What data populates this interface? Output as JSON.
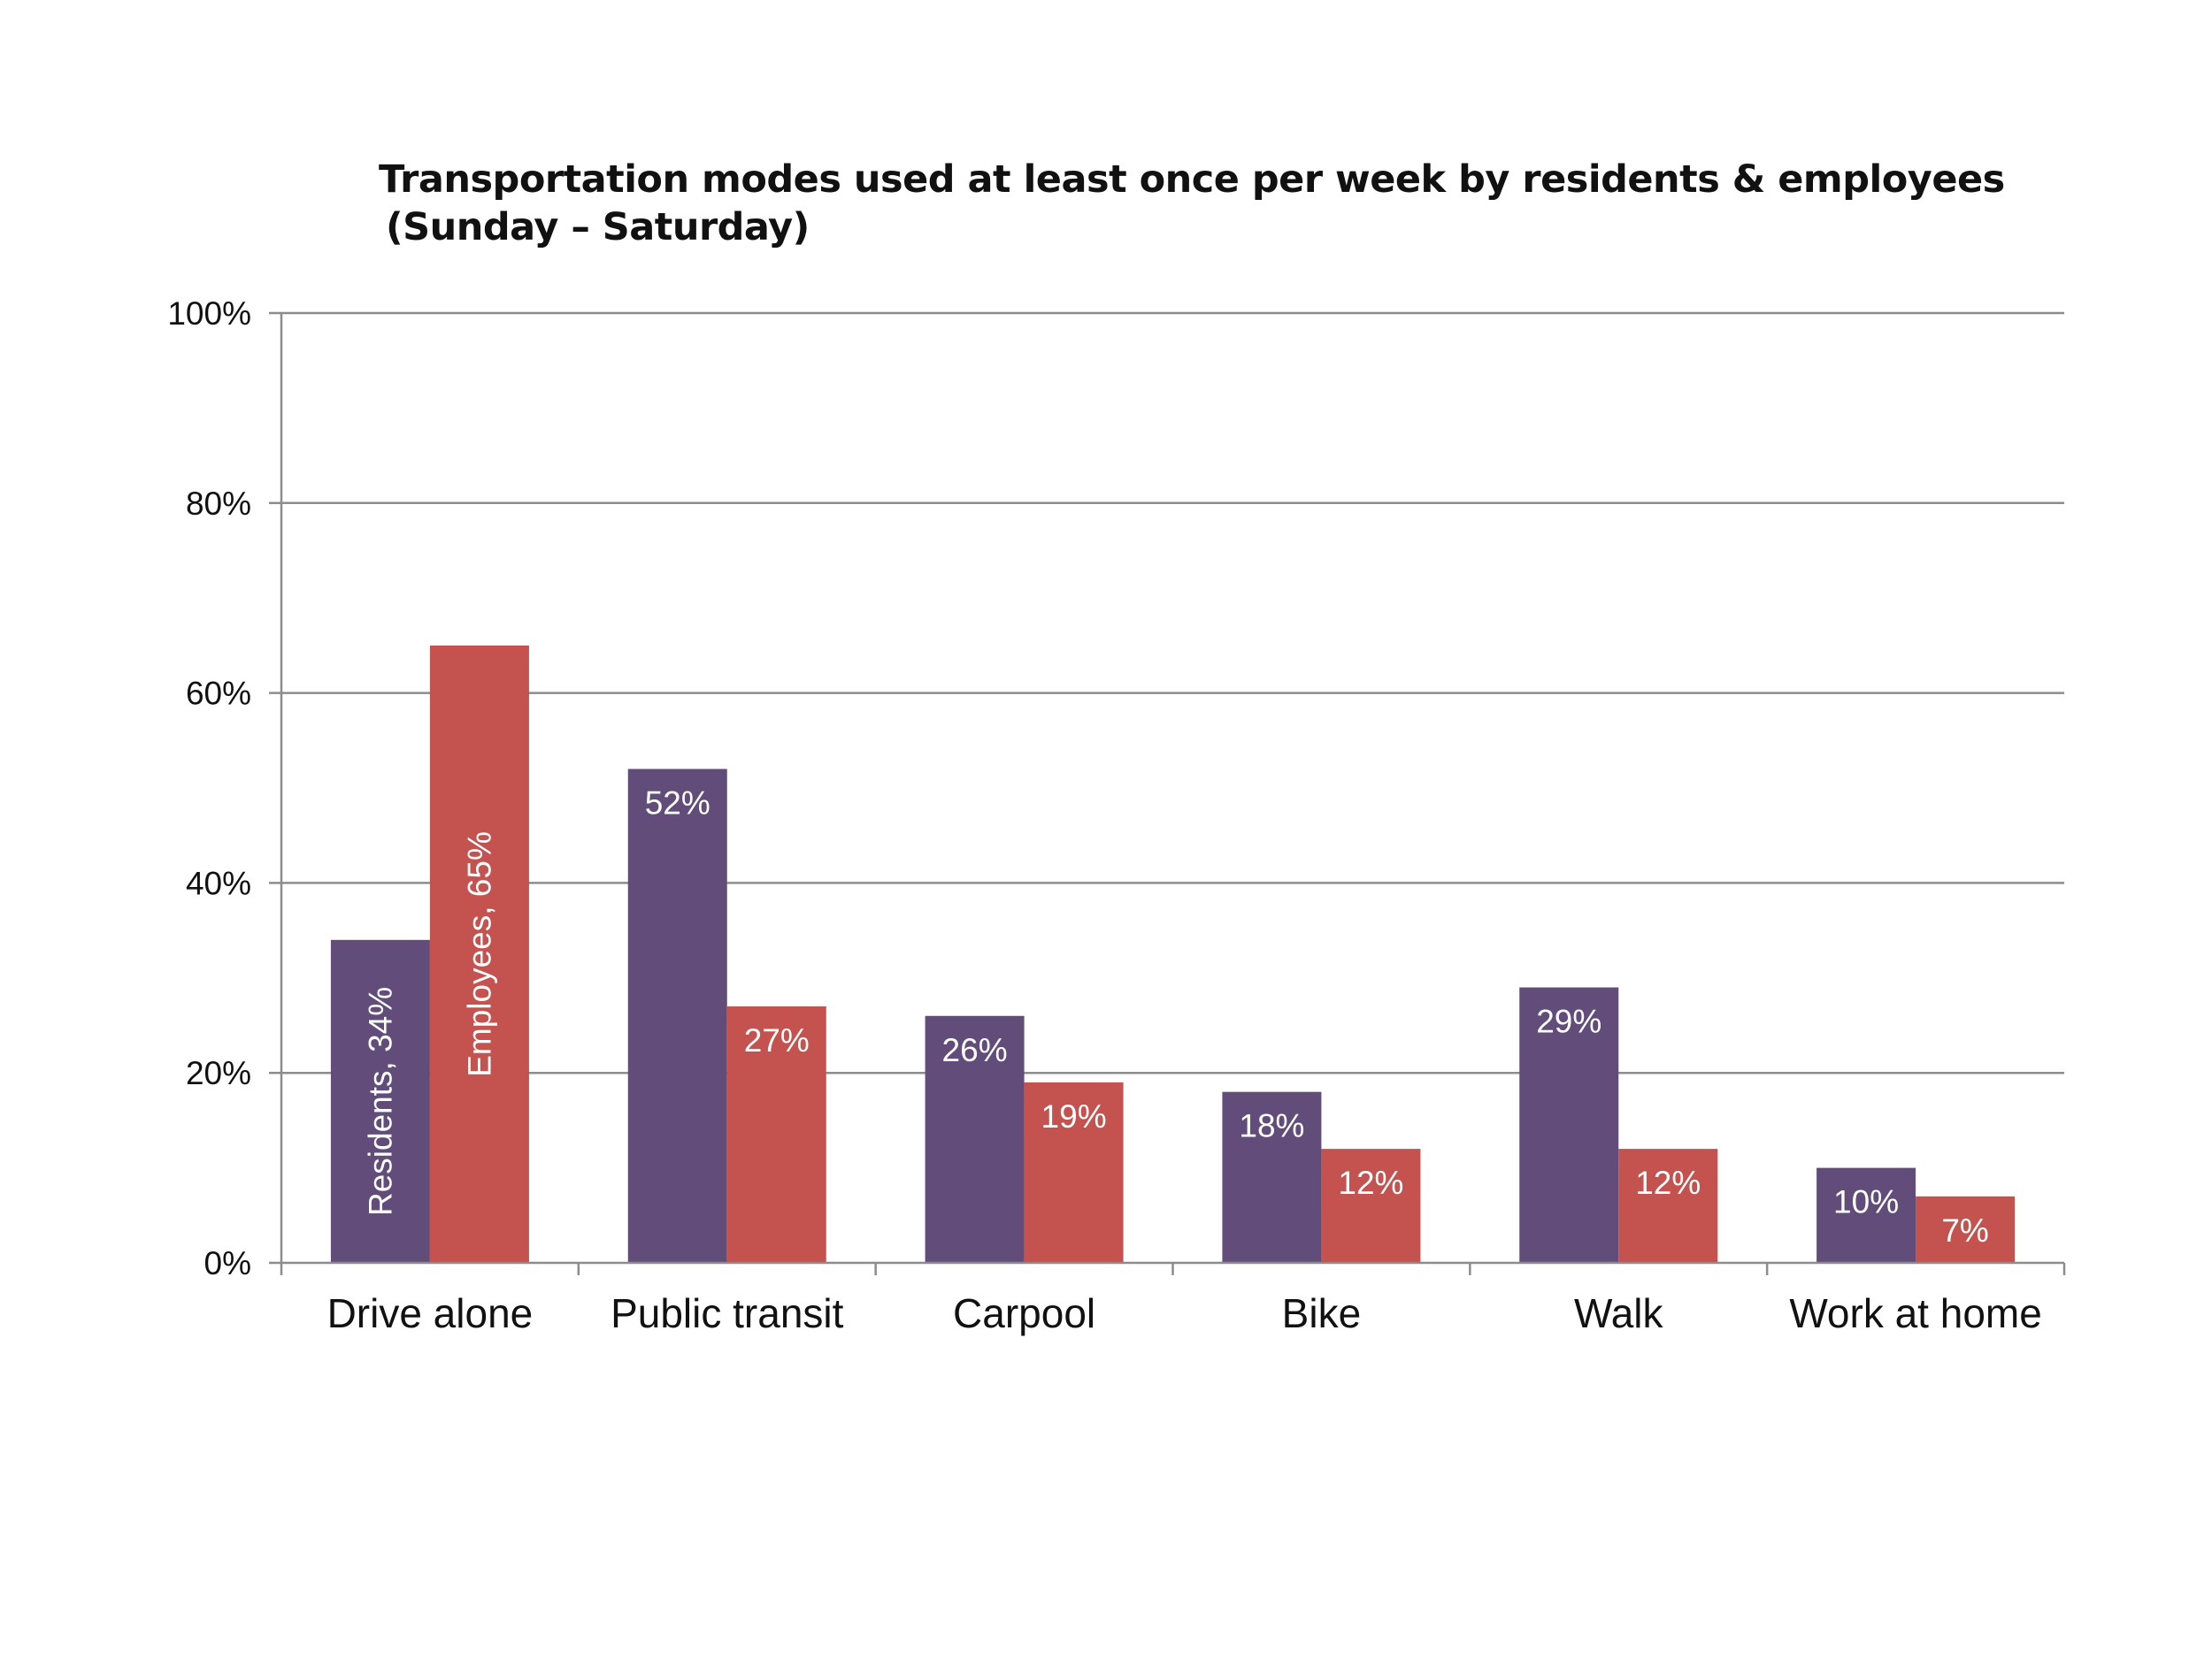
{
  "chart_data": {
    "type": "bar",
    "title_line1": "Transportation modes used at least once per week by residents & employees",
    "title_line2": "(Sunday – Saturday)",
    "categories": [
      "Drive alone",
      "Public transit",
      "Carpool",
      "Bike",
      "Walk",
      "Work at home"
    ],
    "series": [
      {
        "name": "Residents",
        "color": "#624d7a",
        "values": [
          34,
          52,
          26,
          18,
          29,
          10
        ],
        "labels": [
          "Residents, 34%",
          "52%",
          "26%",
          "18%",
          "29%",
          "10%"
        ]
      },
      {
        "name": "Employees",
        "color": "#c4524e",
        "values": [
          65,
          27,
          19,
          12,
          12,
          7
        ],
        "labels": [
          "Employees, 65%",
          "27%",
          "19%",
          "12%",
          "12%",
          "7%"
        ]
      }
    ],
    "y_ticks": [
      0,
      20,
      40,
      60,
      80,
      100
    ],
    "y_tick_labels": [
      "0%",
      "20%",
      "40%",
      "60%",
      "80%",
      "100%"
    ],
    "ylim": [
      0,
      100
    ],
    "grid": true,
    "gridline_color": "#8c8c8c",
    "legend": "none"
  }
}
